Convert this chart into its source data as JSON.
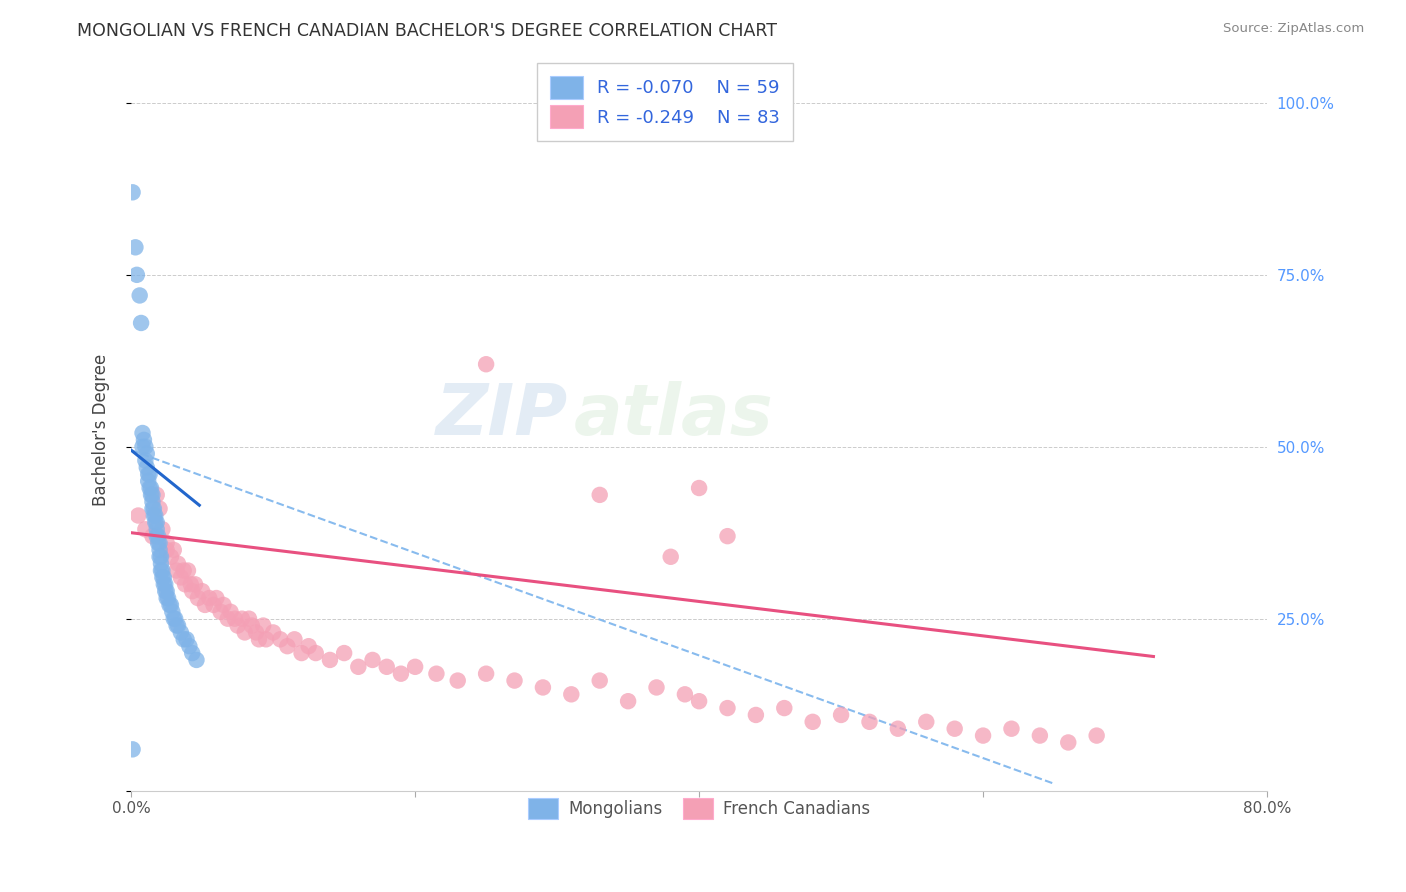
{
  "title": "MONGOLIAN VS FRENCH CANADIAN BACHELOR'S DEGREE CORRELATION CHART",
  "source": "Source: ZipAtlas.com",
  "ylabel_left": "Bachelor's Degree",
  "x_min": 0.0,
  "x_max": 0.8,
  "y_min": 0.0,
  "y_max": 1.05,
  "mongolian_R": -0.07,
  "mongolian_N": 59,
  "french_canadian_R": -0.249,
  "french_canadian_N": 83,
  "mongolian_color": "#7fb3e8",
  "french_canadian_color": "#f4a0b5",
  "mongolian_line_color": "#2266cc",
  "french_canadian_line_color": "#e85080",
  "dashed_line_color": "#88bbee",
  "watermark_zip": "ZIP",
  "watermark_atlas": "atlas",
  "background_color": "#ffffff",
  "grid_color": "#cccccc",
  "legend_mongolians": "Mongolians",
  "legend_french_canadians": "French Canadians",
  "mongolian_x": [
    0.001,
    0.003,
    0.004,
    0.006,
    0.007,
    0.008,
    0.008,
    0.009,
    0.01,
    0.01,
    0.011,
    0.011,
    0.012,
    0.012,
    0.013,
    0.013,
    0.014,
    0.014,
    0.015,
    0.015,
    0.015,
    0.016,
    0.016,
    0.017,
    0.017,
    0.018,
    0.018,
    0.018,
    0.019,
    0.019,
    0.02,
    0.02,
    0.02,
    0.021,
    0.021,
    0.021,
    0.022,
    0.022,
    0.023,
    0.023,
    0.024,
    0.024,
    0.025,
    0.025,
    0.026,
    0.027,
    0.028,
    0.029,
    0.03,
    0.031,
    0.032,
    0.033,
    0.035,
    0.037,
    0.039,
    0.041,
    0.043,
    0.046,
    0.001
  ],
  "mongolian_y": [
    0.87,
    0.79,
    0.75,
    0.72,
    0.68,
    0.52,
    0.5,
    0.51,
    0.5,
    0.48,
    0.49,
    0.47,
    0.46,
    0.45,
    0.44,
    0.46,
    0.44,
    0.43,
    0.43,
    0.42,
    0.41,
    0.41,
    0.4,
    0.4,
    0.39,
    0.39,
    0.38,
    0.37,
    0.37,
    0.36,
    0.36,
    0.35,
    0.34,
    0.34,
    0.33,
    0.32,
    0.32,
    0.31,
    0.31,
    0.3,
    0.3,
    0.29,
    0.29,
    0.28,
    0.28,
    0.27,
    0.27,
    0.26,
    0.25,
    0.25,
    0.24,
    0.24,
    0.23,
    0.22,
    0.22,
    0.21,
    0.2,
    0.19,
    0.06
  ],
  "french_canadian_x": [
    0.005,
    0.01,
    0.015,
    0.018,
    0.02,
    0.022,
    0.025,
    0.025,
    0.028,
    0.03,
    0.032,
    0.033,
    0.035,
    0.037,
    0.038,
    0.04,
    0.042,
    0.043,
    0.045,
    0.047,
    0.05,
    0.052,
    0.055,
    0.058,
    0.06,
    0.063,
    0.065,
    0.068,
    0.07,
    0.073,
    0.075,
    0.078,
    0.08,
    0.083,
    0.085,
    0.088,
    0.09,
    0.093,
    0.095,
    0.1,
    0.105,
    0.11,
    0.115,
    0.12,
    0.125,
    0.13,
    0.14,
    0.15,
    0.16,
    0.17,
    0.18,
    0.19,
    0.2,
    0.215,
    0.23,
    0.25,
    0.27,
    0.29,
    0.31,
    0.33,
    0.35,
    0.37,
    0.39,
    0.4,
    0.42,
    0.44,
    0.46,
    0.48,
    0.5,
    0.52,
    0.54,
    0.56,
    0.58,
    0.6,
    0.62,
    0.64,
    0.66,
    0.68,
    0.33,
    0.4,
    0.25,
    0.38,
    0.42
  ],
  "french_canadian_y": [
    0.4,
    0.38,
    0.37,
    0.43,
    0.41,
    0.38,
    0.36,
    0.35,
    0.34,
    0.35,
    0.32,
    0.33,
    0.31,
    0.32,
    0.3,
    0.32,
    0.3,
    0.29,
    0.3,
    0.28,
    0.29,
    0.27,
    0.28,
    0.27,
    0.28,
    0.26,
    0.27,
    0.25,
    0.26,
    0.25,
    0.24,
    0.25,
    0.23,
    0.25,
    0.24,
    0.23,
    0.22,
    0.24,
    0.22,
    0.23,
    0.22,
    0.21,
    0.22,
    0.2,
    0.21,
    0.2,
    0.19,
    0.2,
    0.18,
    0.19,
    0.18,
    0.17,
    0.18,
    0.17,
    0.16,
    0.17,
    0.16,
    0.15,
    0.14,
    0.16,
    0.13,
    0.15,
    0.14,
    0.13,
    0.12,
    0.11,
    0.12,
    0.1,
    0.11,
    0.1,
    0.09,
    0.1,
    0.09,
    0.08,
    0.09,
    0.08,
    0.07,
    0.08,
    0.43,
    0.44,
    0.62,
    0.34,
    0.37
  ],
  "blue_trend_x0": 0.0,
  "blue_trend_y0": 0.495,
  "blue_trend_x1": 0.048,
  "blue_trend_y1": 0.415,
  "dashed_trend_x0": 0.0,
  "dashed_trend_y0": 0.495,
  "dashed_trend_x1": 0.65,
  "dashed_trend_y1": 0.01,
  "pink_trend_x0": 0.0,
  "pink_trend_y0": 0.375,
  "pink_trend_x1": 0.72,
  "pink_trend_y1": 0.195
}
